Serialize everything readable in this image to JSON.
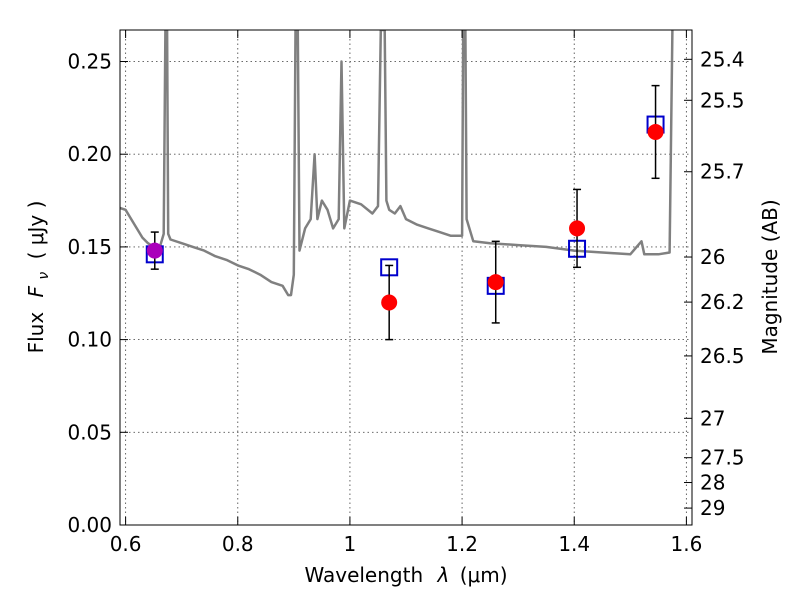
{
  "chart_data": {
    "type": "scatter",
    "title": "",
    "xlabel_prefix": "Wavelength",
    "xlabel_sym": "λ",
    "xlabel_unit": "(μm)",
    "ylabel_prefix": "Flux",
    "ylabel_sym": "F",
    "ylabel_sub": "ν",
    "ylabel_unit": "( μJy )",
    "y2label": "Magnitude (AB)",
    "xlim": [
      0.59,
      1.61
    ],
    "ylim": [
      0.0,
      0.267
    ],
    "grid": true,
    "x_ticks": [
      {
        "v": 0.6,
        "label": "0.6"
      },
      {
        "v": 0.8,
        "label": "0.8"
      },
      {
        "v": 1.0,
        "label": "1"
      },
      {
        "v": 1.2,
        "label": "1.2"
      },
      {
        "v": 1.4,
        "label": "1.4"
      },
      {
        "v": 1.6,
        "label": "1.6"
      }
    ],
    "y_ticks": [
      {
        "v": 0.0,
        "label": "0.00"
      },
      {
        "v": 0.05,
        "label": "0.05"
      },
      {
        "v": 0.1,
        "label": "0.10"
      },
      {
        "v": 0.15,
        "label": "0.15"
      },
      {
        "v": 0.2,
        "label": "0.20"
      },
      {
        "v": 0.25,
        "label": "0.25"
      }
    ],
    "y2_ticks": [
      {
        "v": 25.4,
        "label": "25.4"
      },
      {
        "v": 25.5,
        "label": "25.5"
      },
      {
        "v": 25.7,
        "label": "25.7"
      },
      {
        "v": 26,
        "label": "26"
      },
      {
        "v": 26.2,
        "label": "26.2"
      },
      {
        "v": 26.5,
        "label": "26.5"
      },
      {
        "v": 27,
        "label": "27"
      },
      {
        "v": 27.5,
        "label": "27.5"
      },
      {
        "v": 28,
        "label": "28"
      },
      {
        "v": 29,
        "label": "29"
      }
    ],
    "colors": {
      "model": "#808080",
      "observed": "#ff0000",
      "model_box": "#0000cc",
      "first_point": "#aa00bb",
      "errorbar": "#000000"
    },
    "series": [
      {
        "marker": "line",
        "points": [
          [
            0.59,
            0.171
          ],
          [
            0.6,
            0.17
          ],
          [
            0.61,
            0.165
          ],
          [
            0.62,
            0.16
          ],
          [
            0.63,
            0.155
          ],
          [
            0.64,
            0.152
          ],
          [
            0.65,
            0.15
          ],
          [
            0.66,
            0.149
          ],
          [
            0.668,
            0.157
          ],
          [
            0.671,
            0.267
          ],
          [
            0.674,
            0.267
          ],
          [
            0.676,
            0.157
          ],
          [
            0.68,
            0.154
          ],
          [
            0.7,
            0.152
          ],
          [
            0.72,
            0.15
          ],
          [
            0.74,
            0.148
          ],
          [
            0.76,
            0.145
          ],
          [
            0.78,
            0.143
          ],
          [
            0.8,
            0.14
          ],
          [
            0.82,
            0.138
          ],
          [
            0.84,
            0.135
          ],
          [
            0.86,
            0.131
          ],
          [
            0.88,
            0.129
          ],
          [
            0.89,
            0.124
          ],
          [
            0.895,
            0.124
          ],
          [
            0.9,
            0.135
          ],
          [
            0.903,
            0.267
          ],
          [
            0.907,
            0.267
          ],
          [
            0.91,
            0.148
          ],
          [
            0.92,
            0.16
          ],
          [
            0.93,
            0.165
          ],
          [
            0.937,
            0.2
          ],
          [
            0.942,
            0.165
          ],
          [
            0.95,
            0.175
          ],
          [
            0.96,
            0.17
          ],
          [
            0.97,
            0.16
          ],
          [
            0.98,
            0.165
          ],
          [
            0.985,
            0.25
          ],
          [
            0.99,
            0.16
          ],
          [
            1.0,
            0.175
          ],
          [
            1.02,
            0.173
          ],
          [
            1.04,
            0.168
          ],
          [
            1.05,
            0.172
          ],
          [
            1.055,
            0.267
          ],
          [
            1.062,
            0.267
          ],
          [
            1.065,
            0.175
          ],
          [
            1.07,
            0.17
          ],
          [
            1.08,
            0.168
          ],
          [
            1.09,
            0.172
          ],
          [
            1.1,
            0.165
          ],
          [
            1.12,
            0.162
          ],
          [
            1.14,
            0.16
          ],
          [
            1.16,
            0.158
          ],
          [
            1.18,
            0.156
          ],
          [
            1.2,
            0.156
          ],
          [
            1.202,
            0.267
          ],
          [
            1.206,
            0.267
          ],
          [
            1.208,
            0.165
          ],
          [
            1.22,
            0.153
          ],
          [
            1.25,
            0.152
          ],
          [
            1.3,
            0.151
          ],
          [
            1.35,
            0.15
          ],
          [
            1.4,
            0.148
          ],
          [
            1.45,
            0.147
          ],
          [
            1.5,
            0.146
          ],
          [
            1.52,
            0.153
          ],
          [
            1.525,
            0.146
          ],
          [
            1.55,
            0.146
          ],
          [
            1.57,
            0.147
          ],
          [
            1.575,
            0.267
          ]
        ]
      },
      {
        "marker": "square",
        "points": [
          [
            0.652,
            0.146
          ],
          [
            1.07,
            0.139
          ],
          [
            1.26,
            0.129
          ],
          [
            1.405,
            0.149
          ],
          [
            1.545,
            0.216
          ]
        ]
      },
      {
        "marker": "circle",
        "points": [
          {
            "x": 0.652,
            "y": 0.148,
            "yerr": 0.01
          },
          {
            "x": 1.07,
            "y": 0.12,
            "yerr": 0.02
          },
          {
            "x": 1.26,
            "y": 0.131,
            "yerr": 0.022
          },
          {
            "x": 1.405,
            "y": 0.16,
            "yerr": 0.021
          },
          {
            "x": 1.545,
            "y": 0.212,
            "yerr": 0.025
          }
        ]
      }
    ]
  }
}
